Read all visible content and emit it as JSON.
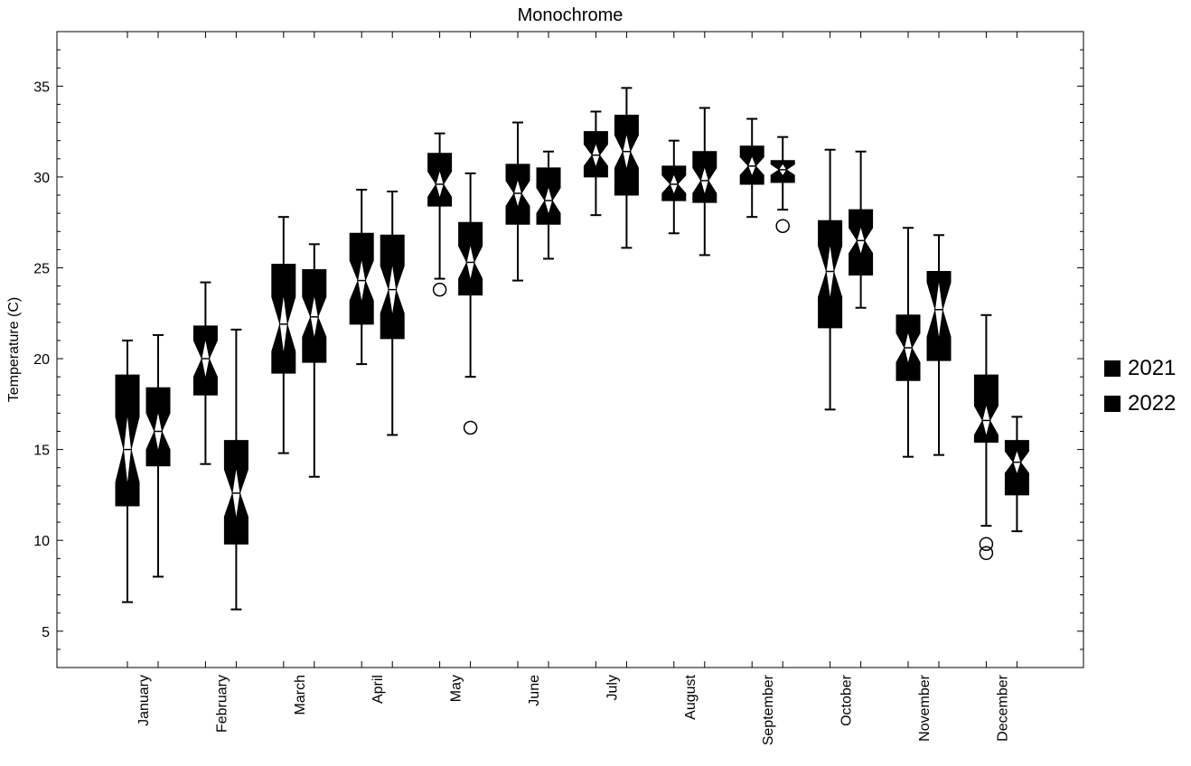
{
  "chart_data": {
    "type": "box",
    "title": "Monochrome",
    "xlabel": "",
    "ylabel": "Temperature (C)",
    "ylim": [
      3,
      38
    ],
    "yticks": [
      5,
      10,
      15,
      20,
      25,
      30,
      35
    ],
    "categories": [
      "January",
      "February",
      "March",
      "April",
      "May",
      "June",
      "July",
      "August",
      "September",
      "October",
      "November",
      "December"
    ],
    "notched": true,
    "legend_position": "right",
    "series": [
      {
        "name": "2021",
        "color": "#000000",
        "boxes": [
          {
            "whislo": 6.6,
            "q1": 11.9,
            "med": 15.0,
            "q3": 19.1,
            "whishi": 21.0,
            "notch_lo": 13.2,
            "notch_hi": 16.8,
            "outliers": []
          },
          {
            "whislo": 14.2,
            "q1": 18.0,
            "med": 20.0,
            "q3": 21.8,
            "whishi": 24.2,
            "notch_lo": 19.0,
            "notch_hi": 21.0,
            "outliers": []
          },
          {
            "whislo": 14.8,
            "q1": 19.2,
            "med": 21.9,
            "q3": 25.2,
            "whishi": 27.8,
            "notch_lo": 20.4,
            "notch_hi": 23.4,
            "outliers": []
          },
          {
            "whislo": 19.7,
            "q1": 21.9,
            "med": 24.3,
            "q3": 26.9,
            "whishi": 29.3,
            "notch_lo": 23.2,
            "notch_hi": 25.4,
            "outliers": []
          },
          {
            "whislo": 24.4,
            "q1": 28.4,
            "med": 29.6,
            "q3": 31.3,
            "whishi": 32.4,
            "notch_lo": 28.9,
            "notch_hi": 30.3,
            "outliers": [
              23.8
            ]
          },
          {
            "whislo": 24.3,
            "q1": 27.4,
            "med": 29.1,
            "q3": 30.7,
            "whishi": 33.0,
            "notch_lo": 28.4,
            "notch_hi": 29.8,
            "outliers": []
          },
          {
            "whislo": 27.9,
            "q1": 30.0,
            "med": 31.2,
            "q3": 32.5,
            "whishi": 33.6,
            "notch_lo": 30.6,
            "notch_hi": 31.8,
            "outliers": []
          },
          {
            "whislo": 26.9,
            "q1": 28.7,
            "med": 29.6,
            "q3": 30.6,
            "whishi": 32.0,
            "notch_lo": 29.1,
            "notch_hi": 30.1,
            "outliers": []
          },
          {
            "whislo": 27.8,
            "q1": 29.6,
            "med": 30.6,
            "q3": 31.7,
            "whishi": 33.2,
            "notch_lo": 30.1,
            "notch_hi": 31.1,
            "outliers": []
          },
          {
            "whislo": 17.2,
            "q1": 21.7,
            "med": 24.8,
            "q3": 27.6,
            "whishi": 31.5,
            "notch_lo": 23.4,
            "notch_hi": 26.2,
            "outliers": []
          },
          {
            "whislo": 14.6,
            "q1": 18.8,
            "med": 20.6,
            "q3": 22.4,
            "whishi": 27.2,
            "notch_lo": 19.8,
            "notch_hi": 21.4,
            "outliers": []
          },
          {
            "whislo": 10.8,
            "q1": 15.4,
            "med": 16.6,
            "q3": 19.1,
            "whishi": 22.4,
            "notch_lo": 15.8,
            "notch_hi": 17.4,
            "outliers": [
              9.8,
              9.3
            ]
          }
        ]
      },
      {
        "name": "2022",
        "color": "#000000",
        "boxes": [
          {
            "whislo": 8.0,
            "q1": 14.1,
            "med": 16.0,
            "q3": 18.4,
            "whishi": 21.3,
            "notch_lo": 15.0,
            "notch_hi": 17.0,
            "outliers": []
          },
          {
            "whislo": 6.2,
            "q1": 9.8,
            "med": 12.6,
            "q3": 15.5,
            "whishi": 21.6,
            "notch_lo": 11.3,
            "notch_hi": 13.9,
            "outliers": []
          },
          {
            "whislo": 13.5,
            "q1": 19.8,
            "med": 22.3,
            "q3": 24.9,
            "whishi": 26.3,
            "notch_lo": 21.2,
            "notch_hi": 23.4,
            "outliers": []
          },
          {
            "whislo": 15.8,
            "q1": 21.1,
            "med": 23.8,
            "q3": 26.8,
            "whishi": 29.2,
            "notch_lo": 22.5,
            "notch_hi": 25.1,
            "outliers": []
          },
          {
            "whislo": 19.0,
            "q1": 23.5,
            "med": 25.3,
            "q3": 27.5,
            "whishi": 30.2,
            "notch_lo": 24.4,
            "notch_hi": 26.2,
            "outliers": [
              16.2
            ]
          },
          {
            "whislo": 25.5,
            "q1": 27.4,
            "med": 28.7,
            "q3": 30.5,
            "whishi": 31.4,
            "notch_lo": 28.0,
            "notch_hi": 29.4,
            "outliers": []
          },
          {
            "whislo": 26.1,
            "q1": 29.0,
            "med": 31.4,
            "q3": 33.4,
            "whishi": 34.9,
            "notch_lo": 30.5,
            "notch_hi": 32.3,
            "outliers": []
          },
          {
            "whislo": 25.7,
            "q1": 28.6,
            "med": 29.8,
            "q3": 31.4,
            "whishi": 33.8,
            "notch_lo": 29.1,
            "notch_hi": 30.5,
            "outliers": []
          },
          {
            "whislo": 28.2,
            "q1": 29.7,
            "med": 30.4,
            "q3": 30.9,
            "whishi": 32.2,
            "notch_lo": 30.1,
            "notch_hi": 30.7,
            "outliers": [
              27.3
            ]
          },
          {
            "whislo": 22.8,
            "q1": 24.6,
            "med": 26.5,
            "q3": 28.2,
            "whishi": 31.4,
            "notch_lo": 25.8,
            "notch_hi": 27.2,
            "outliers": []
          },
          {
            "whislo": 14.7,
            "q1": 19.9,
            "med": 22.7,
            "q3": 24.8,
            "whishi": 26.8,
            "notch_lo": 21.2,
            "notch_hi": 24.2,
            "outliers": []
          },
          {
            "whislo": 10.5,
            "q1": 12.5,
            "med": 14.3,
            "q3": 15.5,
            "whishi": 16.8,
            "notch_lo": 13.7,
            "notch_hi": 14.9,
            "outliers": []
          }
        ]
      }
    ]
  }
}
